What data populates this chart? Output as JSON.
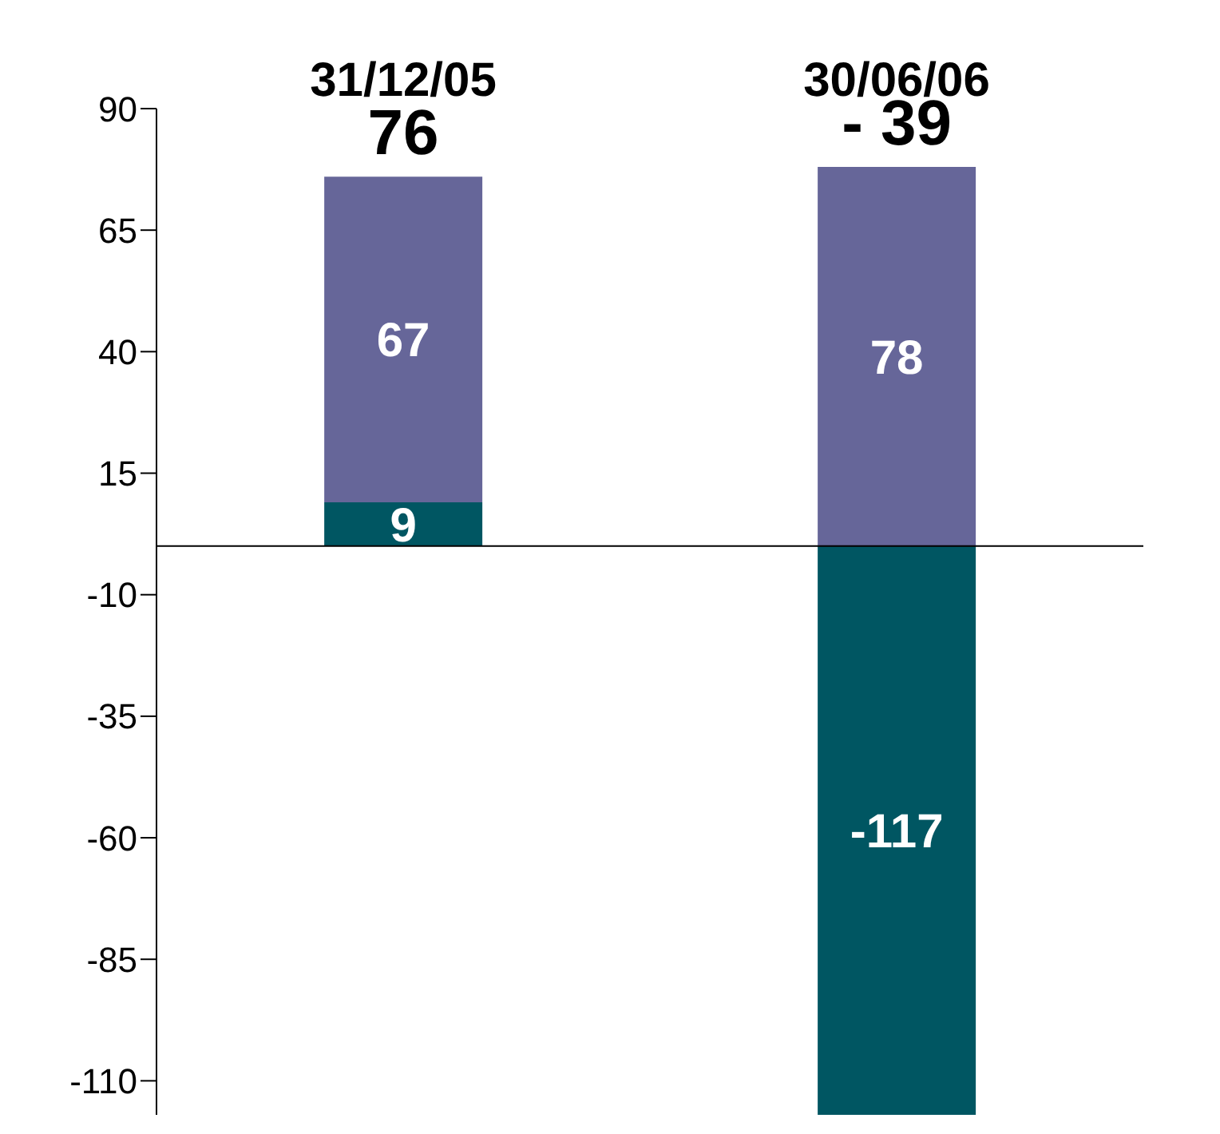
{
  "chart_data": {
    "type": "bar",
    "stacked": true,
    "categories": [
      "31/12/05",
      "30/06/06"
    ],
    "series": [
      {
        "color": "#005662",
        "values": [
          9,
          -117
        ]
      },
      {
        "color": "#666699",
        "values": [
          67,
          78
        ]
      }
    ],
    "ylim": [
      -117,
      90
    ],
    "yticks": [
      -110,
      -85,
      -60,
      -35,
      -10,
      15,
      40,
      65,
      90
    ],
    "data_labels": true,
    "totals": [
      "76",
      "- 39"
    ],
    "grid": false,
    "legend": false
  }
}
